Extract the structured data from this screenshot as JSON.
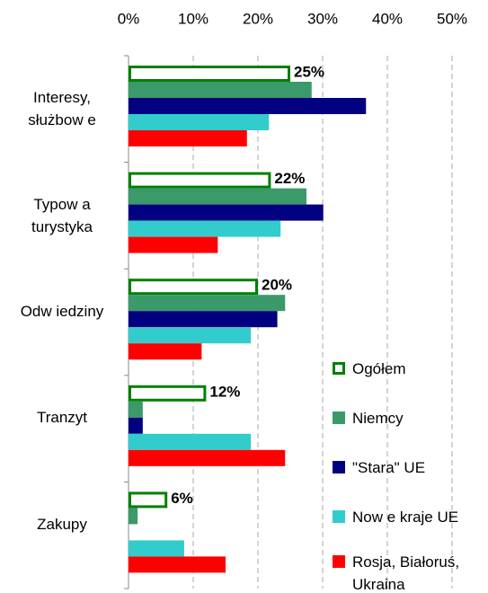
{
  "chart_data": {
    "type": "bar",
    "orientation": "horizontal",
    "categories": [
      "Interesy, służbow e",
      "Typow a turystyka",
      "Odw iedziny",
      "Tranzyt",
      "Zakupy"
    ],
    "series": [
      {
        "name": "Ogółem",
        "color": "#008000",
        "outline": true,
        "values": [
          25,
          22,
          20,
          12,
          6
        ],
        "value_labels": [
          "25%",
          "22%",
          "20%",
          "12%",
          "6%"
        ]
      },
      {
        "name": "Niemcy",
        "color": "#3a9a6a",
        "values": [
          28.3,
          27.5,
          24.2,
          2.2,
          1.4
        ]
      },
      {
        "name": "\"Stara\" UE",
        "color": "#000080",
        "values": [
          36.7,
          30.1,
          23,
          2.2,
          0
        ]
      },
      {
        "name": "Now e kraje UE",
        "color": "#33cccc",
        "values": [
          21.7,
          23.5,
          18.9,
          18.9,
          8.6
        ]
      },
      {
        "name": "Rosja, Białoruś, Ukraina",
        "color": "#ff0000",
        "values": [
          18.3,
          13.8,
          11.3,
          24.2,
          15
        ]
      }
    ],
    "xlim": [
      0,
      50
    ],
    "xticks": [
      {
        "value": 0,
        "label": "0%"
      },
      {
        "value": 10,
        "label": "10%"
      },
      {
        "value": 20,
        "label": "20%"
      },
      {
        "value": 30,
        "label": "30%"
      },
      {
        "value": 40,
        "label": "40%"
      },
      {
        "value": 50,
        "label": "50%"
      }
    ],
    "grid": true
  }
}
